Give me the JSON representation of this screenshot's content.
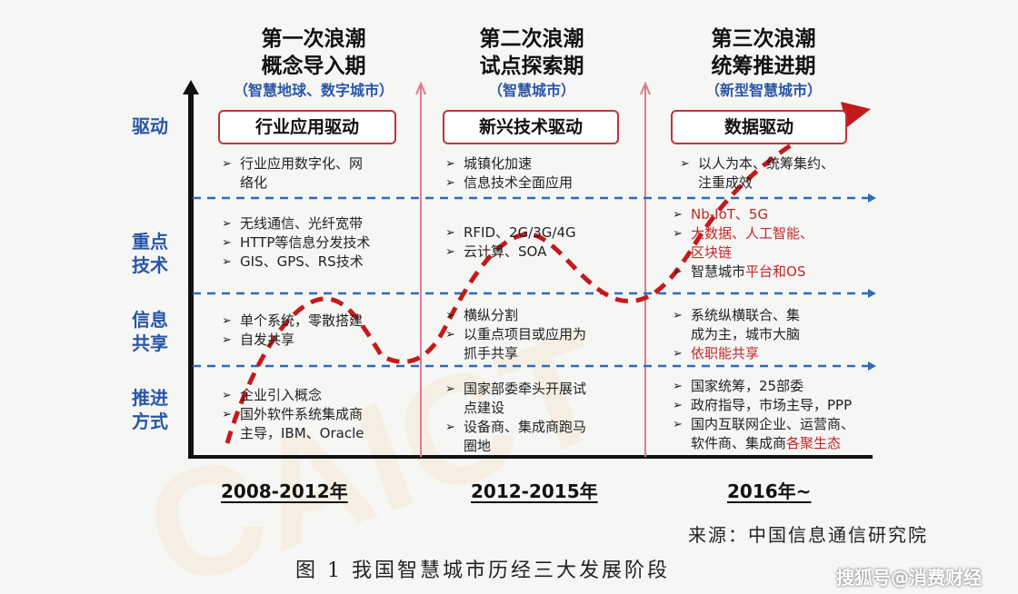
{
  "phases": [
    {
      "title_line1": "第一次浪潮",
      "title_line2": "概念导入期",
      "subtitle": "（智慧地球、数字城市）",
      "driver": "行业应用驱动",
      "years": "2008-2012年",
      "drive_items": [
        "行业应用数字化、网",
        "络化"
      ],
      "tech_items": [
        "无线通信、光纤宽带",
        "HTTP等信息分发技术",
        "GIS、GPS、RS技术"
      ],
      "share_items": [
        "单个系统，零散搭建",
        "自发共享"
      ],
      "method_items": [
        "企业引入概念",
        "国外软件系统集成商",
        "主导，IBM、Oracle"
      ]
    },
    {
      "title_line1": "第二次浪潮",
      "title_line2": "试点探索期",
      "subtitle": "（智慧城市）",
      "driver": "新兴技术驱动",
      "years": "2012-2015年",
      "drive_items": [
        "城镇化加速",
        "信息技术全面应用"
      ],
      "tech_items": [
        "RFID、2G/3G/4G",
        "云计算、SOA"
      ],
      "share_items": [
        "横纵分割",
        "以重点项目或应用为",
        "抓手共享"
      ],
      "method_items": [
        "国家部委牵头开展试",
        "点建设",
        "设备商、集成商跑马",
        "圈地"
      ]
    },
    {
      "title_line1": "第三次浪潮",
      "title_line2": "统筹推进期",
      "subtitle": "（新型智慧城市）",
      "driver": "数据驱动",
      "years": "2016年~",
      "drive_items": [
        "以人为本、统筹集约、",
        "注重成效"
      ],
      "tech_items": [
        "Nb-IoT、5G",
        "大数据、人工智能、",
        "区块链",
        "智慧城市",
        "平台和OS"
      ],
      "share_items": [
        "系统纵横联合、集",
        "成为主，城市大脑",
        "依职能共享"
      ],
      "method_items": [
        "国家统筹，25部委",
        "政府指导，市场主导，PPP",
        "国内互联网企业、运营商、",
        "软件商、集成商",
        "各聚生态"
      ]
    }
  ],
  "rows": {
    "drive": "驱动",
    "tech_1": "重点",
    "tech_2": "技术",
    "share_1": "信息",
    "share_2": "共享",
    "method_1": "推进",
    "method_2": "方式"
  },
  "source": "来源：中国信息通信研究院",
  "caption": "图 1 我国智慧城市历经三大发展阶段",
  "watermark": "搜狐号@消费财经",
  "colors": {
    "accent_blue": "#2a56a8",
    "curve_red": "#c41a1c",
    "box_border": "#b8383a",
    "dashed_line": "#2f6bb8"
  }
}
